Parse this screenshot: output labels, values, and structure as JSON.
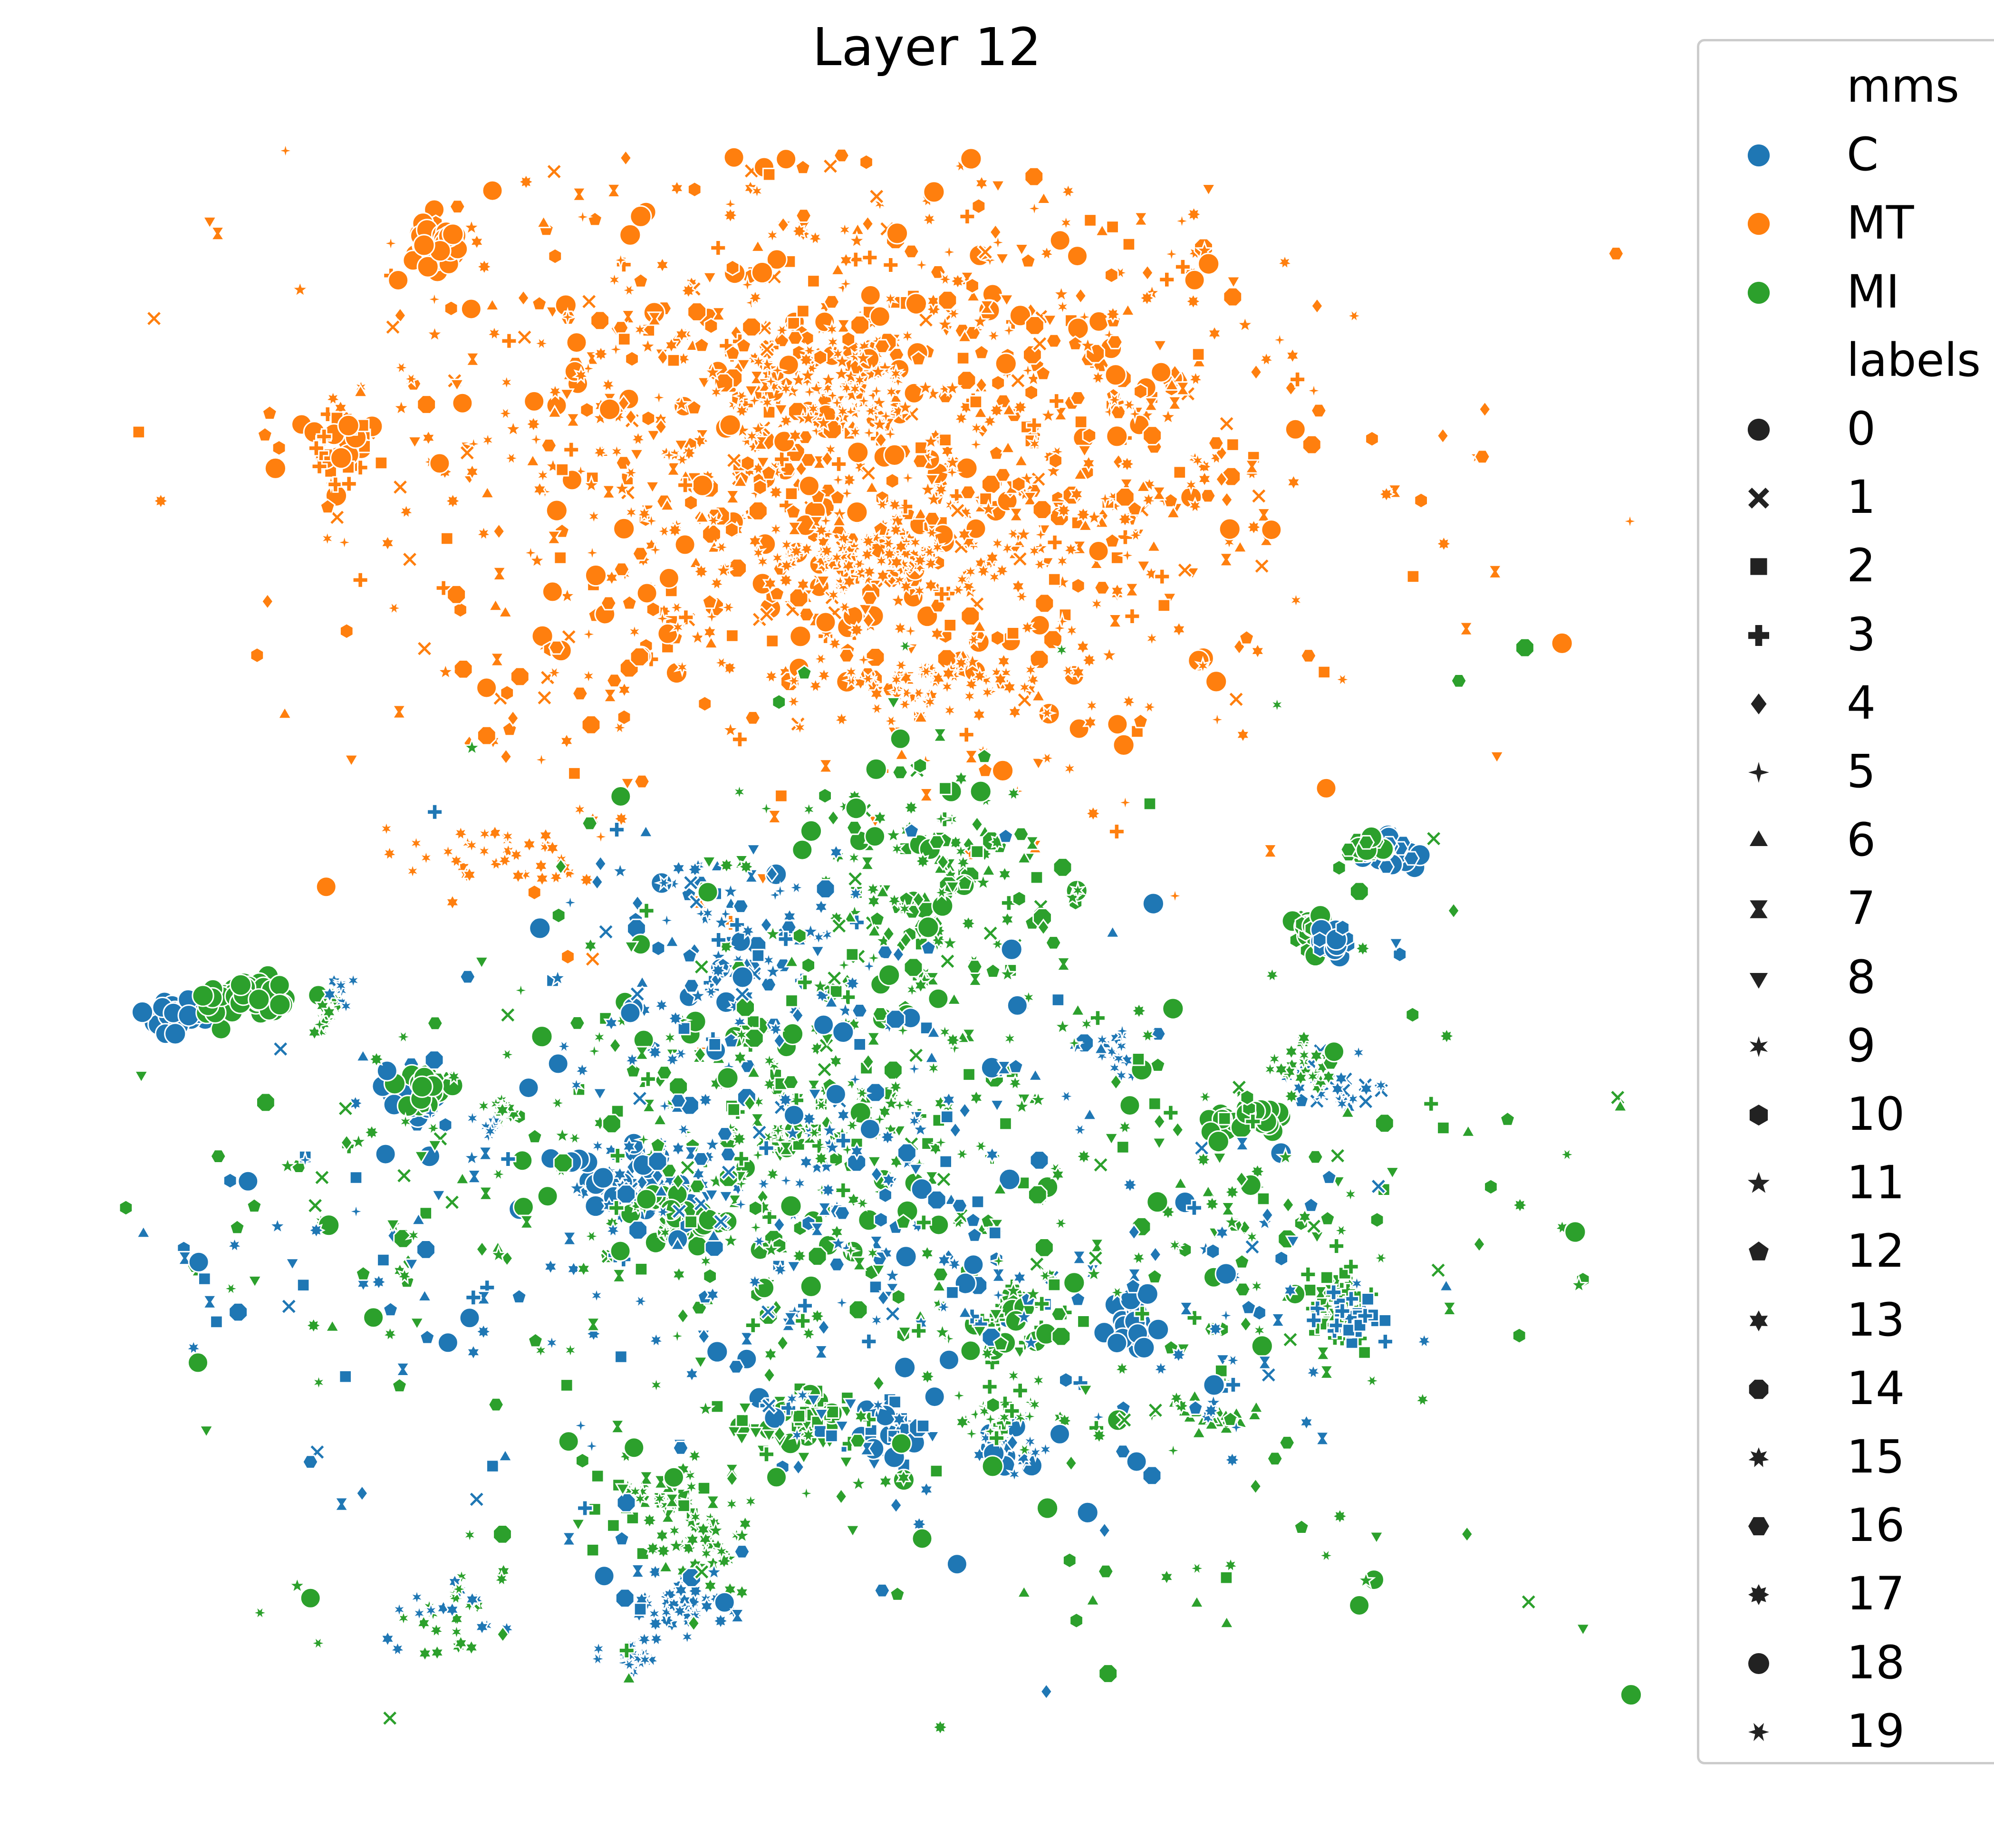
{
  "chart_data": {
    "type": "scatter",
    "title": "Layer 12",
    "xlabel": "",
    "ylabel": "",
    "axes_visible": false,
    "grid": false,
    "legend_placement": "right",
    "hue": {
      "title": "mms",
      "levels": [
        {
          "name": "C",
          "color": "#1f77b4"
        },
        {
          "name": "MT",
          "color": "#ff7f0e"
        },
        {
          "name": "MI",
          "color": "#2ca02c"
        }
      ]
    },
    "style": {
      "title": "labels",
      "levels": [
        {
          "name": "0",
          "marker": "circle"
        },
        {
          "name": "1",
          "marker": "x"
        },
        {
          "name": "2",
          "marker": "square"
        },
        {
          "name": "3",
          "marker": "plus"
        },
        {
          "name": "4",
          "marker": "diamond"
        },
        {
          "name": "5",
          "marker": "star4"
        },
        {
          "name": "6",
          "marker": "triangle-up"
        },
        {
          "name": "7",
          "marker": "hourglass"
        },
        {
          "name": "8",
          "marker": "triangle-down"
        },
        {
          "name": "9",
          "marker": "asterisk"
        },
        {
          "name": "10",
          "marker": "hexagon"
        },
        {
          "name": "11",
          "marker": "star5"
        },
        {
          "name": "12",
          "marker": "pentagon"
        },
        {
          "name": "13",
          "marker": "star6"
        },
        {
          "name": "14",
          "marker": "octagon"
        },
        {
          "name": "15",
          "marker": "star7"
        },
        {
          "name": "16",
          "marker": "hexagon-flat"
        },
        {
          "name": "17",
          "marker": "star8"
        },
        {
          "name": "18",
          "marker": "octagon-round"
        },
        {
          "name": "19",
          "marker": "star6-thin"
        }
      ]
    },
    "clusters": [
      {
        "group": "MT",
        "x": 0.47,
        "y": 0.8,
        "sx": 0.15,
        "sy": 0.09,
        "n": 1300,
        "labels": "all"
      },
      {
        "group": "MT",
        "x": 0.22,
        "y": 0.935,
        "sx": 0.008,
        "sy": 0.006,
        "n": 40,
        "labels": [
          0,
          18
        ]
      },
      {
        "group": "MT",
        "x": 0.16,
        "y": 0.815,
        "sx": 0.01,
        "sy": 0.01,
        "n": 35,
        "labels": [
          0,
          2,
          3
        ]
      },
      {
        "group": "MT",
        "x": 0.53,
        "y": 0.665,
        "sx": 0.035,
        "sy": 0.01,
        "n": 60,
        "labels": [
          9,
          13,
          15,
          19
        ]
      },
      {
        "group": "MT",
        "x": 0.5,
        "y": 0.745,
        "sx": 0.045,
        "sy": 0.012,
        "n": 90,
        "labels": [
          9,
          13,
          15,
          19
        ]
      },
      {
        "group": "MT",
        "x": 0.47,
        "y": 0.845,
        "sx": 0.03,
        "sy": 0.015,
        "n": 60,
        "labels": [
          11,
          5,
          9
        ]
      },
      {
        "group": "MT",
        "x": 0.26,
        "y": 0.56,
        "sx": 0.03,
        "sy": 0.01,
        "n": 40,
        "labels": [
          9,
          13,
          15
        ]
      },
      {
        "group": "C",
        "x": 0.055,
        "y": 0.46,
        "sx": 0.008,
        "sy": 0.006,
        "n": 30,
        "labels": [
          0,
          18
        ]
      },
      {
        "group": "MI",
        "x": 0.095,
        "y": 0.47,
        "sx": 0.014,
        "sy": 0.007,
        "n": 45,
        "labels": [
          0,
          18
        ]
      },
      {
        "group": "C",
        "x": 0.205,
        "y": 0.41,
        "sx": 0.008,
        "sy": 0.007,
        "n": 25,
        "labels": [
          0,
          16
        ]
      },
      {
        "group": "MI",
        "x": 0.215,
        "y": 0.415,
        "sx": 0.008,
        "sy": 0.006,
        "n": 25,
        "labels": [
          0,
          16
        ]
      },
      {
        "group": "C",
        "x": 0.81,
        "y": 0.56,
        "sx": 0.01,
        "sy": 0.005,
        "n": 30,
        "labels": [
          0,
          16
        ]
      },
      {
        "group": "MI",
        "x": 0.795,
        "y": 0.565,
        "sx": 0.008,
        "sy": 0.004,
        "n": 20,
        "labels": [
          0,
          16
        ]
      },
      {
        "group": "MI",
        "x": 0.765,
        "y": 0.51,
        "sx": 0.008,
        "sy": 0.006,
        "n": 25,
        "labels": [
          0,
          10
        ]
      },
      {
        "group": "C",
        "x": 0.775,
        "y": 0.505,
        "sx": 0.006,
        "sy": 0.005,
        "n": 15,
        "labels": [
          0,
          10
        ]
      },
      {
        "group": "MI",
        "x": 0.725,
        "y": 0.395,
        "sx": 0.01,
        "sy": 0.006,
        "n": 30,
        "labels": [
          0,
          18
        ]
      },
      {
        "group": "C",
        "x": 0.65,
        "y": 0.265,
        "sx": 0.008,
        "sy": 0.008,
        "n": 25,
        "labels": [
          0,
          18
        ]
      },
      {
        "group": "C",
        "x": 0.34,
        "y": 0.36,
        "sx": 0.02,
        "sy": 0.012,
        "n": 60,
        "labels": [
          4,
          13,
          0
        ]
      },
      {
        "group": "MI",
        "x": 0.37,
        "y": 0.335,
        "sx": 0.01,
        "sy": 0.008,
        "n": 30,
        "labels": [
          0,
          18
        ]
      },
      {
        "group": "MI",
        "x": 0.53,
        "y": 0.54,
        "sx": 0.035,
        "sy": 0.04,
        "n": 160,
        "labels": "all"
      },
      {
        "group": "C",
        "x": 0.4,
        "y": 0.51,
        "sx": 0.035,
        "sy": 0.03,
        "n": 90,
        "labels": "all"
      },
      {
        "group": "MI",
        "x": 0.44,
        "y": 0.4,
        "sx": 0.08,
        "sy": 0.06,
        "n": 280,
        "labels": "all"
      },
      {
        "group": "C",
        "x": 0.44,
        "y": 0.38,
        "sx": 0.09,
        "sy": 0.07,
        "n": 160,
        "labels": "all"
      },
      {
        "group": "MI",
        "x": 0.35,
        "y": 0.16,
        "sx": 0.02,
        "sy": 0.012,
        "n": 40,
        "labels": [
          2,
          7,
          9
        ]
      },
      {
        "group": "C",
        "x": 0.37,
        "y": 0.095,
        "sx": 0.015,
        "sy": 0.008,
        "n": 35,
        "labels": [
          9,
          13,
          17
        ]
      },
      {
        "group": "MI",
        "x": 0.385,
        "y": 0.13,
        "sx": 0.015,
        "sy": 0.012,
        "n": 40,
        "labels": [
          9,
          13,
          17,
          11
        ]
      },
      {
        "group": "C",
        "x": 0.34,
        "y": 0.065,
        "sx": 0.012,
        "sy": 0.005,
        "n": 25,
        "labels": [
          9,
          15,
          19
        ]
      },
      {
        "group": "MI",
        "x": 0.44,
        "y": 0.21,
        "sx": 0.02,
        "sy": 0.01,
        "n": 45,
        "labels": [
          2,
          8,
          0
        ]
      },
      {
        "group": "C",
        "x": 0.49,
        "y": 0.2,
        "sx": 0.015,
        "sy": 0.01,
        "n": 35,
        "labels": [
          8,
          2,
          0
        ]
      },
      {
        "group": "MI",
        "x": 0.58,
        "y": 0.27,
        "sx": 0.012,
        "sy": 0.01,
        "n": 30,
        "labels": [
          8,
          3,
          0
        ]
      },
      {
        "group": "C",
        "x": 0.58,
        "y": 0.19,
        "sx": 0.012,
        "sy": 0.008,
        "n": 25,
        "labels": [
          13,
          9,
          0
        ]
      },
      {
        "group": "MI",
        "x": 0.57,
        "y": 0.215,
        "sx": 0.012,
        "sy": 0.008,
        "n": 25,
        "labels": [
          5,
          9,
          3
        ]
      },
      {
        "group": "MI",
        "x": 0.78,
        "y": 0.28,
        "sx": 0.012,
        "sy": 0.015,
        "n": 50,
        "labels": [
          3,
          2,
          7
        ]
      },
      {
        "group": "C",
        "x": 0.79,
        "y": 0.27,
        "sx": 0.01,
        "sy": 0.01,
        "n": 25,
        "labels": [
          3,
          2
        ]
      },
      {
        "group": "C",
        "x": 0.78,
        "y": 0.42,
        "sx": 0.015,
        "sy": 0.008,
        "n": 30,
        "labels": [
          9,
          13,
          1
        ]
      },
      {
        "group": "MI",
        "x": 0.76,
        "y": 0.43,
        "sx": 0.012,
        "sy": 0.008,
        "n": 25,
        "labels": [
          9,
          13
        ]
      },
      {
        "group": "MI",
        "x": 0.7,
        "y": 0.21,
        "sx": 0.015,
        "sy": 0.005,
        "n": 20,
        "labels": [
          6
        ]
      },
      {
        "group": "C",
        "x": 0.64,
        "y": 0.435,
        "sx": 0.005,
        "sy": 0.008,
        "n": 15,
        "labels": [
          9,
          13
        ]
      },
      {
        "group": "MI",
        "x": 0.15,
        "y": 0.46,
        "sx": 0.005,
        "sy": 0.007,
        "n": 15,
        "labels": [
          9,
          13
        ]
      },
      {
        "group": "C",
        "x": 0.16,
        "y": 0.475,
        "sx": 0.004,
        "sy": 0.004,
        "n": 8,
        "labels": [
          9,
          13
        ]
      },
      {
        "group": "MI",
        "x": 0.26,
        "y": 0.4,
        "sx": 0.006,
        "sy": 0.006,
        "n": 15,
        "labels": [
          9,
          13
        ]
      },
      {
        "group": "C",
        "x": 0.25,
        "y": 0.39,
        "sx": 0.005,
        "sy": 0.004,
        "n": 10,
        "labels": [
          9,
          13
        ]
      },
      {
        "group": "MI",
        "x": 0.22,
        "y": 0.09,
        "sx": 0.02,
        "sy": 0.012,
        "n": 20,
        "labels": [
          9,
          13,
          15
        ]
      },
      {
        "group": "C",
        "x": 0.22,
        "y": 0.09,
        "sx": 0.02,
        "sy": 0.012,
        "n": 15,
        "labels": [
          9,
          13,
          15
        ]
      },
      {
        "group": "C",
        "x": 0.44,
        "y": 0.3,
        "sx": 0.15,
        "sy": 0.1,
        "n": 200,
        "labels": "all"
      },
      {
        "group": "MI",
        "x": 0.55,
        "y": 0.32,
        "sx": 0.22,
        "sy": 0.14,
        "n": 320,
        "labels": "all"
      },
      {
        "group": "MI",
        "x": 0.15,
        "y": 0.33,
        "sx": 0.06,
        "sy": 0.05,
        "n": 40,
        "labels": "all"
      },
      {
        "group": "C",
        "x": 0.13,
        "y": 0.31,
        "sx": 0.06,
        "sy": 0.05,
        "n": 35,
        "labels": "all"
      },
      {
        "group": "MI",
        "x": 0.72,
        "y": 0.32,
        "sx": 0.05,
        "sy": 0.07,
        "n": 60,
        "labels": "all"
      },
      {
        "group": "C",
        "x": 0.72,
        "y": 0.28,
        "sx": 0.06,
        "sy": 0.06,
        "n": 45,
        "labels": "all"
      }
    ]
  },
  "legend": [
    {
      "kind": "title",
      "text": "mms"
    },
    {
      "kind": "hue",
      "text": "C",
      "color": "#1f77b4"
    },
    {
      "kind": "hue",
      "text": "MT",
      "color": "#ff7f0e"
    },
    {
      "kind": "hue",
      "text": "MI",
      "color": "#2ca02c"
    },
    {
      "kind": "title",
      "text": "labels"
    },
    {
      "kind": "style",
      "text": "0",
      "marker": "circle"
    },
    {
      "kind": "style",
      "text": "1",
      "marker": "x"
    },
    {
      "kind": "style",
      "text": "2",
      "marker": "square"
    },
    {
      "kind": "style",
      "text": "3",
      "marker": "plus"
    },
    {
      "kind": "style",
      "text": "4",
      "marker": "diamond"
    },
    {
      "kind": "style",
      "text": "5",
      "marker": "star4"
    },
    {
      "kind": "style",
      "text": "6",
      "marker": "triangle-up"
    },
    {
      "kind": "style",
      "text": "7",
      "marker": "hourglass"
    },
    {
      "kind": "style",
      "text": "8",
      "marker": "triangle-down"
    },
    {
      "kind": "style",
      "text": "9",
      "marker": "asterisk"
    },
    {
      "kind": "style",
      "text": "10",
      "marker": "hexagon"
    },
    {
      "kind": "style",
      "text": "11",
      "marker": "star5"
    },
    {
      "kind": "style",
      "text": "12",
      "marker": "pentagon"
    },
    {
      "kind": "style",
      "text": "13",
      "marker": "star6"
    },
    {
      "kind": "style",
      "text": "14",
      "marker": "octagon"
    },
    {
      "kind": "style",
      "text": "15",
      "marker": "star7"
    },
    {
      "kind": "style",
      "text": "16",
      "marker": "hexagon-flat"
    },
    {
      "kind": "style",
      "text": "17",
      "marker": "star8"
    },
    {
      "kind": "style",
      "text": "18",
      "marker": "octagon-round"
    },
    {
      "kind": "style",
      "text": "19",
      "marker": "star6-thin"
    }
  ]
}
